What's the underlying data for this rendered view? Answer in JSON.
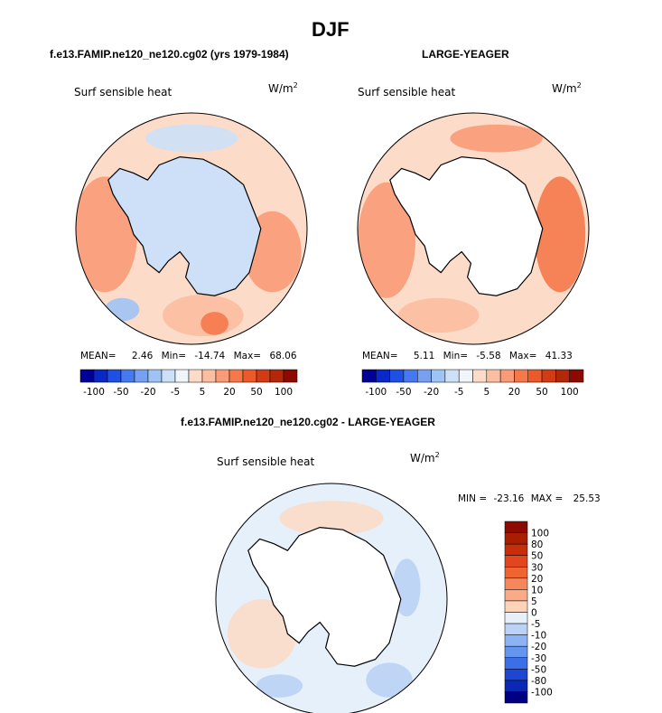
{
  "page": {
    "title": "DJF",
    "panel1_title": "f.e13.FAMIP.ne120_ne120.cg02 (yrs 1979-1984)",
    "panel2_title": "LARGE-YEAGER",
    "panel3_title": "f.e13.FAMIP.ne120_ne120.cg02 - LARGE-YEAGER"
  },
  "chart_data": [
    {
      "type": "heatmap",
      "title": "f.e13.FAMIP.ne120_ne120.cg02 (yrs 1979-1984)",
      "variable": "Surf sensible heat",
      "units_base": "W/m",
      "units_exp": "2",
      "stats": {
        "mean_label": "MEAN=",
        "mean": "2.46",
        "min_label": "Min=",
        "min": "-14.74",
        "max_label": "Max=",
        "max": "68.06"
      },
      "colorbar_ticks": [
        "-100",
        "-50",
        "-20",
        "-5",
        "5",
        "20",
        "50",
        "100"
      ],
      "colorbar_colors": [
        "#000096",
        "#0a28c8",
        "#1e50e6",
        "#4678f0",
        "#78a0f0",
        "#a0c3f5",
        "#cde0f8",
        "#f0f5fa",
        "#fcdcc8",
        "#fcbea0",
        "#fa9b78",
        "#f5784b",
        "#eb5a28",
        "#d23c14",
        "#b4280a",
        "#8c0a00"
      ]
    },
    {
      "type": "heatmap",
      "title": "LARGE-YEAGER",
      "variable": "Surf sensible heat",
      "units_base": "W/m",
      "units_exp": "2",
      "stats": {
        "mean_label": "MEAN=",
        "mean": "5.11",
        "min_label": "Min=",
        "min": "-5.58",
        "max_label": "Max=",
        "max": "41.33"
      },
      "colorbar_ticks": [
        "-100",
        "-50",
        "-20",
        "-5",
        "5",
        "20",
        "50",
        "100"
      ],
      "colorbar_colors": [
        "#000096",
        "#0a28c8",
        "#1e50e6",
        "#4678f0",
        "#78a0f0",
        "#a0c3f5",
        "#cde0f8",
        "#f0f5fa",
        "#fcdcc8",
        "#fcbea0",
        "#fa9b78",
        "#f5784b",
        "#eb5a28",
        "#d23c14",
        "#b4280a",
        "#8c0a00"
      ]
    },
    {
      "type": "heatmap",
      "title": "f.e13.FAMIP.ne120_ne120.cg02 - LARGE-YEAGER",
      "variable": "Surf sensible heat",
      "units_base": "W/m",
      "units_exp": "2",
      "stats": {
        "min_label": "MIN =",
        "min": "-23.16",
        "max_label": "MAX =",
        "max": "25.53"
      },
      "colorbar_ticks": [
        "100",
        "80",
        "50",
        "30",
        "20",
        "10",
        "5",
        "0",
        "-5",
        "-10",
        "-20",
        "-30",
        "-50",
        "-80",
        "-100"
      ],
      "colorbar_colors": [
        "#8c0a00",
        "#aa1e00",
        "#c82d0a",
        "#e1461e",
        "#f06432",
        "#f5875a",
        "#faaa87",
        "#fcd2b9",
        "#e6f0fa",
        "#b9d2f5",
        "#8cb4f5",
        "#6496f0",
        "#3c6ee6",
        "#1e46d2",
        "#0a28b4",
        "#000082"
      ]
    }
  ]
}
